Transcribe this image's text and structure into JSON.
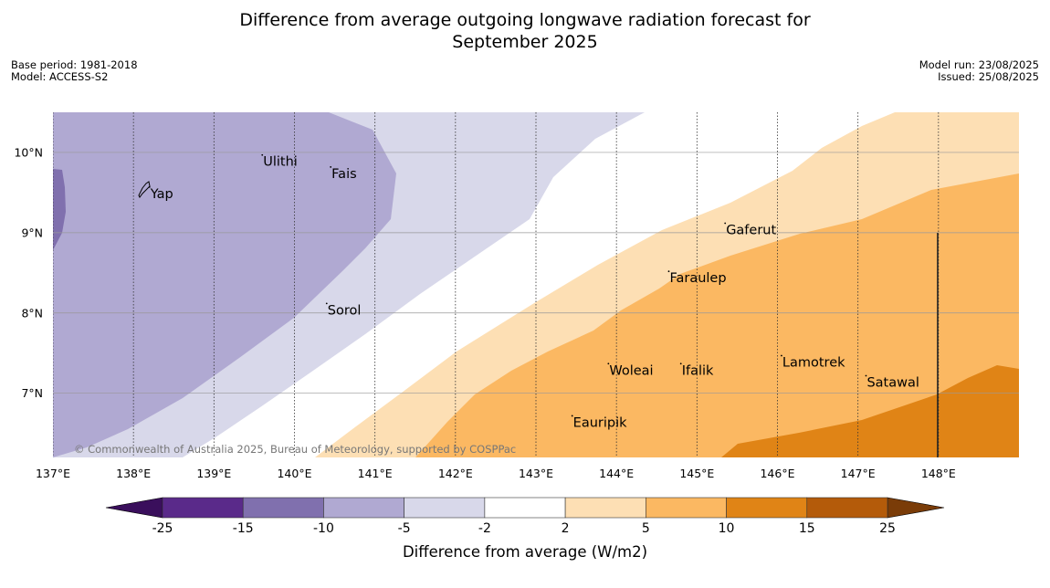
{
  "title": {
    "line1": "Difference from average outgoing longwave radiation forecast for",
    "line2": "September 2025"
  },
  "meta_left": {
    "base_period": "Base period: 1981-2018",
    "model": "Model: ACCESS-S2"
  },
  "meta_right": {
    "model_run": "Model run: 23/08/2025",
    "issued": "Issued: 25/08/2025"
  },
  "copyright": "© Commonwealth of Australia 2025, Bureau of Meteorology, supported by COSPPac",
  "map": {
    "lon_range": [
      137,
      149
    ],
    "lat_range": [
      6.2,
      10.5
    ],
    "x_ticks": [
      {
        "value": 137,
        "label": "137°E"
      },
      {
        "value": 138,
        "label": "138°E"
      },
      {
        "value": 139,
        "label": "139°E"
      },
      {
        "value": 140,
        "label": "140°E"
      },
      {
        "value": 141,
        "label": "141°E"
      },
      {
        "value": 142,
        "label": "142°E"
      },
      {
        "value": 143,
        "label": "143°E"
      },
      {
        "value": 144,
        "label": "144°E"
      },
      {
        "value": 145,
        "label": "145°E"
      },
      {
        "value": 146,
        "label": "146°E"
      },
      {
        "value": 147,
        "label": "147°E"
      },
      {
        "value": 148,
        "label": "148°E"
      }
    ],
    "y_ticks": [
      {
        "value": 10,
        "label": "10°N"
      },
      {
        "value": 9,
        "label": "9°N"
      },
      {
        "value": 8,
        "label": "8°N"
      },
      {
        "value": 7,
        "label": "7°N"
      }
    ],
    "places": [
      {
        "name": "Yap",
        "lon": 138.2,
        "lat": 9.5
      },
      {
        "name": "Ulithi",
        "lon": 139.6,
        "lat": 9.9
      },
      {
        "name": "Fais",
        "lon": 140.45,
        "lat": 9.75
      },
      {
        "name": "Gaferut",
        "lon": 145.35,
        "lat": 9.05
      },
      {
        "name": "Faraulep",
        "lon": 144.65,
        "lat": 8.45
      },
      {
        "name": "Sorol",
        "lon": 140.4,
        "lat": 8.05
      },
      {
        "name": "Lamotrek",
        "lon": 146.05,
        "lat": 7.4
      },
      {
        "name": "Woleai",
        "lon": 143.9,
        "lat": 7.3
      },
      {
        "name": "Ifalik",
        "lon": 144.8,
        "lat": 7.3
      },
      {
        "name": "Satawal",
        "lon": 147.1,
        "lat": 7.15
      },
      {
        "name": "Eauripik",
        "lon": 143.45,
        "lat": 6.65
      }
    ]
  },
  "colorbar": {
    "levels": [
      "-25",
      "-15",
      "-10",
      "-5",
      "-2",
      "2",
      "5",
      "10",
      "15",
      "25"
    ],
    "colors": [
      "#5a2a8a",
      "#8070ae",
      "#b0a9d2",
      "#d8d8ea",
      "#ffffff",
      "#fddfb4",
      "#fbb862",
      "#e08416",
      "#b45b0a"
    ],
    "under_color": "#3a0f5c",
    "over_color": "#7a3c08",
    "label": "Difference from average (W/m2)"
  }
}
